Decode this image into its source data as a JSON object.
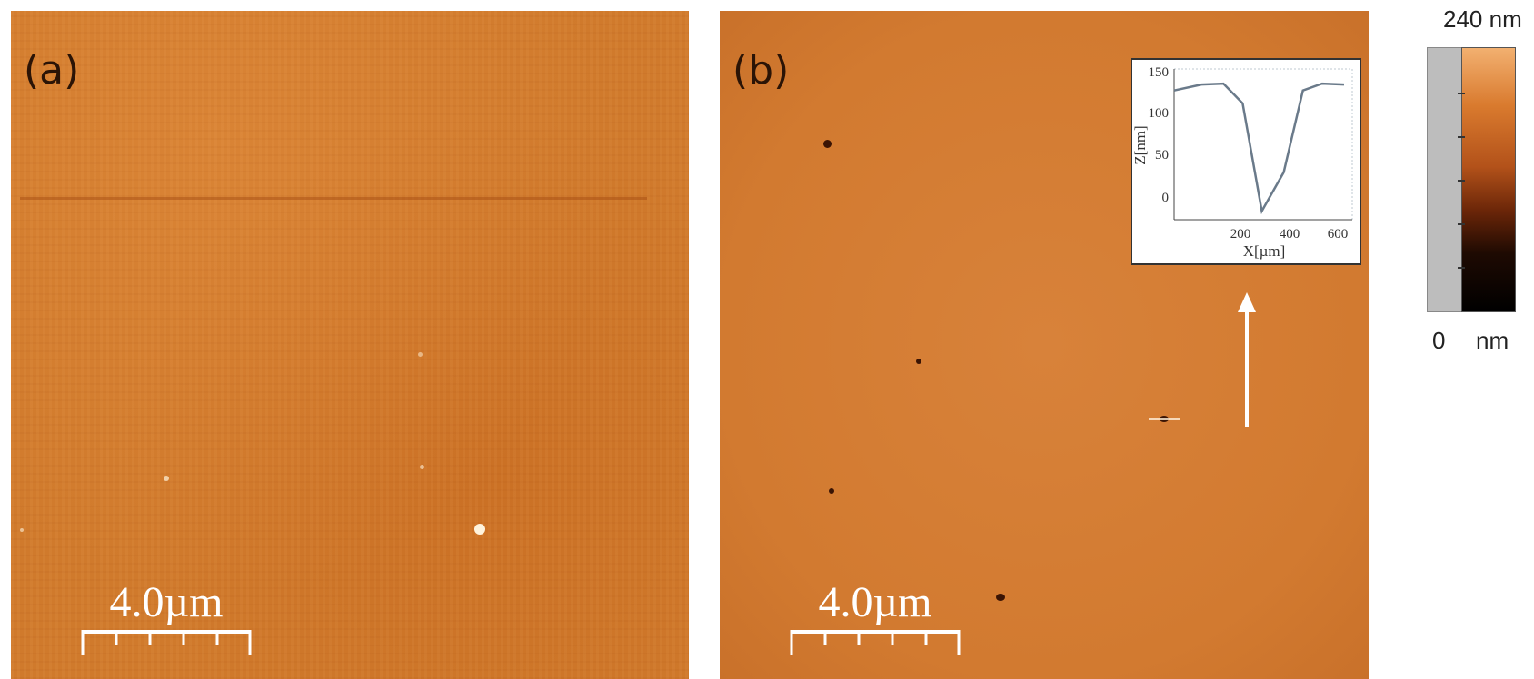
{
  "panel_a": {
    "label": "(a)",
    "scale_bar": "4.0µm"
  },
  "panel_b": {
    "label": "(b)",
    "scale_bar": "4.0µm",
    "inset": {
      "x_axis_label": "X[µm]",
      "y_axis_label": "Z[nm]",
      "x_ticks": [
        "200",
        "400",
        "600"
      ],
      "y_ticks": [
        "0",
        "50",
        "100",
        "150"
      ],
      "profile": {
        "x": [
          0,
          100,
          180,
          250,
          320,
          400,
          470,
          540,
          620
        ],
        "z": [
          140,
          147,
          148,
          125,
          0,
          45,
          140,
          148,
          147
        ]
      }
    }
  },
  "colorbar": {
    "max_label": "240 nm",
    "min_value": "0",
    "min_unit": "nm"
  },
  "colors": {
    "substrate": "#d07a2c",
    "inset_line": "#6a7a8a"
  }
}
